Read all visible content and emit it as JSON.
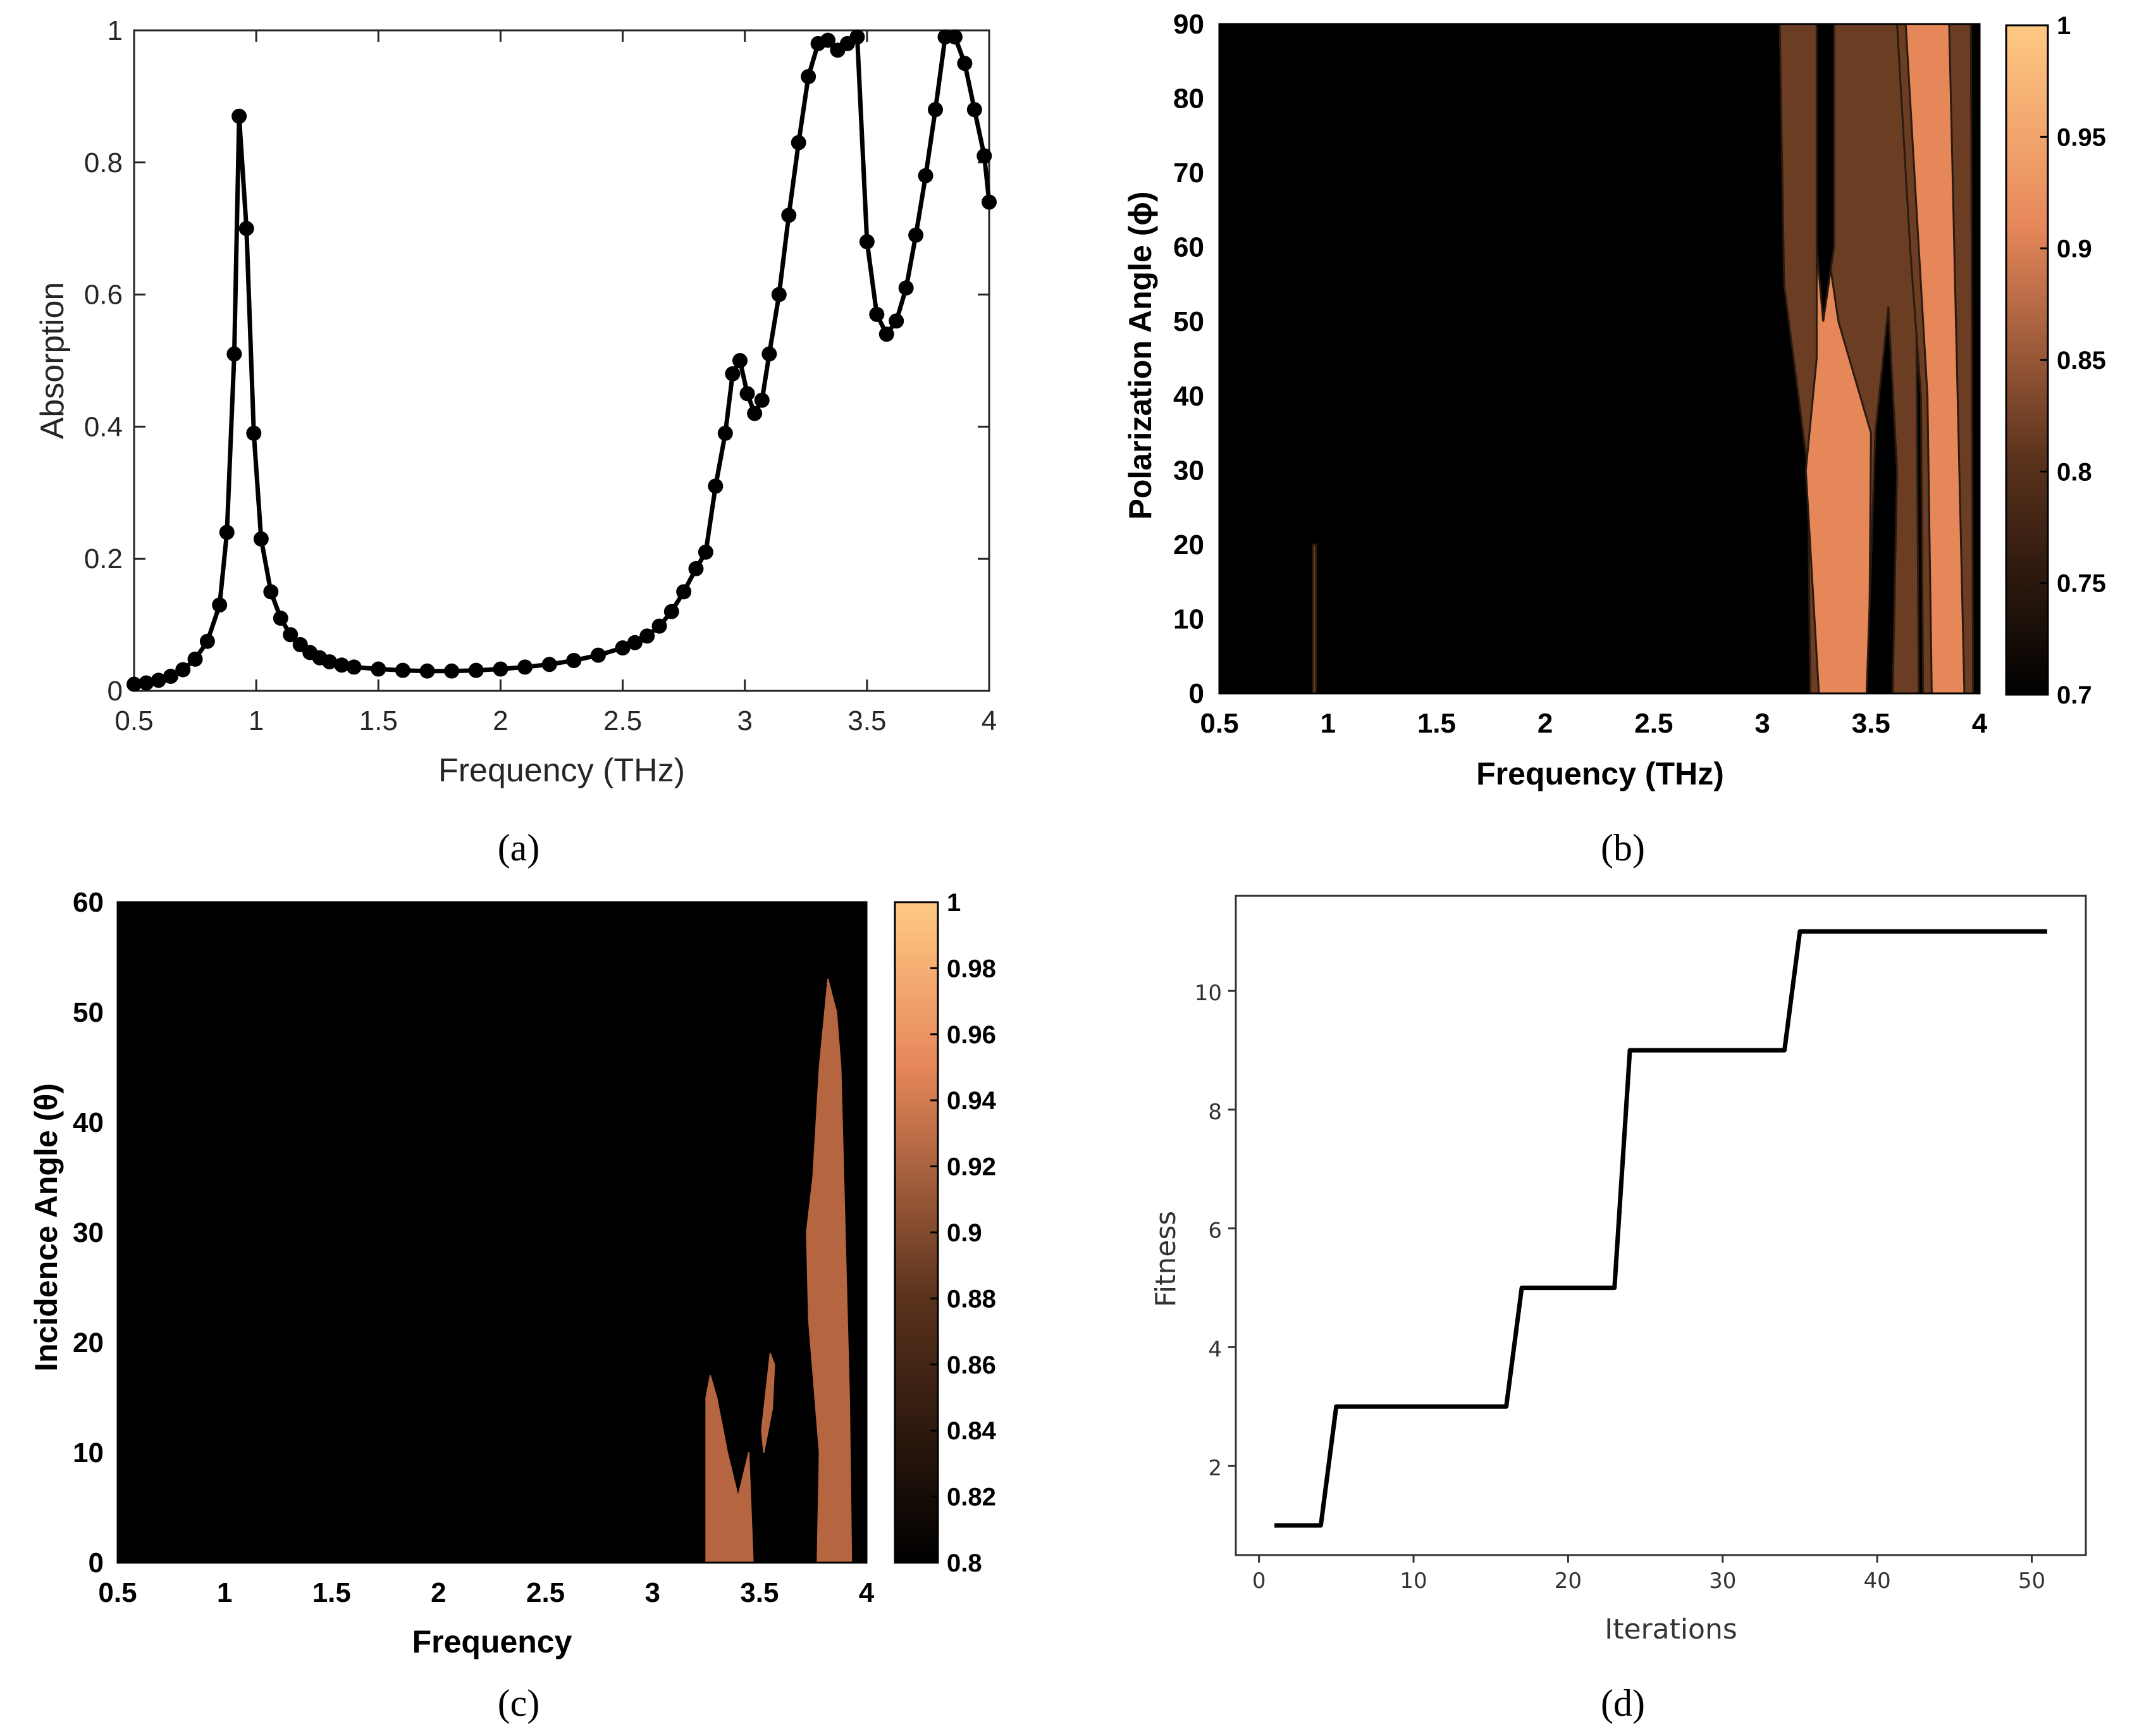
{
  "chart_data": [
    {
      "panel": "a",
      "type": "line",
      "caption": "(a)",
      "xlabel": "Frequency (THz)",
      "ylabel": "Absorption",
      "xlim": [
        0.5,
        4
      ],
      "ylim": [
        0,
        1
      ],
      "xticks": [
        "0.5",
        "1",
        "1.5",
        "2",
        "2.5",
        "3",
        "3.5",
        "4"
      ],
      "yticks": [
        "0",
        "0.2",
        "0.4",
        "0.6",
        "0.8",
        "1"
      ],
      "line_color": "#000000",
      "x": [
        0.5,
        0.55,
        0.6,
        0.65,
        0.7,
        0.75,
        0.8,
        0.85,
        0.88,
        0.91,
        0.93,
        0.96,
        0.99,
        1.02,
        1.06,
        1.1,
        1.14,
        1.18,
        1.22,
        1.26,
        1.3,
        1.35,
        1.4,
        1.5,
        1.6,
        1.7,
        1.8,
        1.9,
        2.0,
        2.1,
        2.2,
        2.3,
        2.4,
        2.5,
        2.55,
        2.6,
        2.65,
        2.7,
        2.75,
        2.8,
        2.84,
        2.88,
        2.92,
        2.95,
        2.98,
        3.01,
        3.04,
        3.07,
        3.1,
        3.14,
        3.18,
        3.22,
        3.26,
        3.3,
        3.34,
        3.38,
        3.42,
        3.46,
        3.5,
        3.54,
        3.58,
        3.62,
        3.66,
        3.7,
        3.74,
        3.78,
        3.82,
        3.86,
        3.9,
        3.94,
        3.98,
        4.0
      ],
      "values": [
        0.01,
        0.012,
        0.016,
        0.022,
        0.032,
        0.048,
        0.075,
        0.13,
        0.24,
        0.51,
        0.87,
        0.7,
        0.39,
        0.23,
        0.15,
        0.11,
        0.085,
        0.07,
        0.058,
        0.05,
        0.044,
        0.039,
        0.036,
        0.033,
        0.031,
        0.03,
        0.03,
        0.031,
        0.033,
        0.036,
        0.04,
        0.046,
        0.054,
        0.065,
        0.073,
        0.083,
        0.098,
        0.12,
        0.15,
        0.185,
        0.21,
        0.31,
        0.39,
        0.48,
        0.5,
        0.45,
        0.42,
        0.44,
        0.51,
        0.6,
        0.72,
        0.83,
        0.93,
        0.98,
        0.985,
        0.97,
        0.98,
        0.99,
        0.68,
        0.57,
        0.54,
        0.56,
        0.61,
        0.69,
        0.78,
        0.88,
        0.99,
        0.99,
        0.95,
        0.88,
        0.81,
        0.74
      ]
    },
    {
      "panel": "b",
      "type": "heatmap",
      "caption": "(b)",
      "xlabel": "Frequency (THz)",
      "ylabel": "Polarization Angle (ϕ)",
      "xlim": [
        0.5,
        4
      ],
      "ylim": [
        0,
        90
      ],
      "xticks": [
        "0.5",
        "1",
        "1.5",
        "2",
        "2.5",
        "3",
        "3.5",
        "4"
      ],
      "yticks": [
        "0",
        "10",
        "20",
        "30",
        "40",
        "50",
        "60",
        "70",
        "80",
        "90"
      ],
      "colorbar_range": [
        0.7,
        1
      ],
      "colorbar_ticks": [
        "0.7",
        "0.75",
        "0.8",
        "0.85",
        "0.9",
        "0.95",
        "1"
      ],
      "colors": {
        "low": "#000000",
        "mid": "#6b3d23",
        "high": "#e6875a"
      },
      "regions": [
        {
          "level": 0.75,
          "color": "#6b3d23",
          "points": [
            [
              0.93,
              0
            ],
            [
              0.945,
              0
            ],
            [
              0.945,
              20
            ],
            [
              0.93,
              20
            ]
          ]
        },
        {
          "level": 0.75,
          "color": "#6b3d23",
          "points": [
            [
              3.08,
              90
            ],
            [
              3.7,
              90
            ],
            [
              3.72,
              0
            ],
            [
              3.22,
              0
            ],
            [
              3.21,
              30
            ],
            [
              3.1,
              55
            ]
          ]
        },
        {
          "level": 0.9,
          "color": "#e6875a",
          "points": [
            [
              3.12,
              90
            ],
            [
              3.25,
              90
            ],
            [
              3.25,
              45
            ],
            [
              3.2,
              30
            ],
            [
              3.26,
              0
            ],
            [
              3.49,
              0
            ],
            [
              3.5,
              35
            ],
            [
              3.35,
              50
            ],
            [
              3.3,
              60
            ],
            [
              3.25,
              90
            ]
          ]
        },
        {
          "level": 0.75,
          "color": "#000000",
          "points": [
            [
              3.25,
              90
            ],
            [
              3.33,
              90
            ],
            [
              3.33,
              60
            ],
            [
              3.28,
              50
            ],
            [
              3.25,
              60
            ]
          ]
        },
        {
          "level": 0.75,
          "color": "#000000",
          "points": [
            [
              3.48,
              0
            ],
            [
              3.6,
              0
            ],
            [
              3.62,
              30
            ],
            [
              3.58,
              52
            ],
            [
              3.52,
              35
            ]
          ]
        },
        {
          "level": 0.75,
          "color": "#6b3d23",
          "points": [
            [
              3.62,
              90
            ],
            [
              3.96,
              90
            ],
            [
              3.97,
              0
            ],
            [
              3.74,
              0
            ],
            [
              3.73,
              40
            ],
            [
              3.68,
              60
            ]
          ]
        },
        {
          "level": 0.9,
          "color": "#e6875a",
          "points": [
            [
              3.66,
              90
            ],
            [
              3.86,
              90
            ],
            [
              3.93,
              0
            ],
            [
              3.78,
              0
            ],
            [
              3.76,
              40
            ],
            [
              3.72,
              60
            ]
          ]
        }
      ]
    },
    {
      "panel": "c",
      "type": "heatmap",
      "caption": "(c)",
      "xlabel": "Frequency",
      "ylabel": "Incidence Angle (θ)",
      "xlim": [
        0.5,
        4
      ],
      "ylim": [
        0,
        60
      ],
      "xticks": [
        "0.5",
        "1",
        "1.5",
        "2",
        "2.5",
        "3",
        "3.5",
        "4"
      ],
      "yticks": [
        "0",
        "10",
        "20",
        "30",
        "40",
        "50",
        "60"
      ],
      "colorbar_range": [
        0.8,
        1
      ],
      "colorbar_ticks": [
        "0.8",
        "0.82",
        "0.84",
        "0.86",
        "0.88",
        "0.9",
        "0.92",
        "0.94",
        "0.96",
        "0.98",
        "1"
      ],
      "colors": {
        "low": "#000000",
        "region": "#b5653f"
      },
      "regions": [
        {
          "level": 0.9,
          "color": "#b5653f",
          "points": [
            [
              3.25,
              0
            ],
            [
              3.47,
              0
            ],
            [
              3.45,
              10
            ],
            [
              3.4,
              6
            ],
            [
              3.35,
              10
            ],
            [
              3.3,
              15
            ],
            [
              3.27,
              17
            ],
            [
              3.25,
              15
            ]
          ]
        },
        {
          "level": 0.9,
          "color": "#b5653f",
          "points": [
            [
              3.51,
              12
            ],
            [
              3.55,
              19
            ],
            [
              3.57,
              18
            ],
            [
              3.56,
              14
            ],
            [
              3.52,
              10
            ]
          ]
        },
        {
          "level": 0.9,
          "color": "#b5653f",
          "points": [
            [
              3.77,
              0
            ],
            [
              3.93,
              0
            ],
            [
              3.92,
              15
            ],
            [
              3.88,
              45
            ],
            [
              3.86,
              50
            ],
            [
              3.82,
              53
            ],
            [
              3.78,
              45
            ],
            [
              3.75,
              35
            ],
            [
              3.72,
              30
            ],
            [
              3.73,
              22
            ],
            [
              3.78,
              10
            ]
          ]
        }
      ]
    },
    {
      "panel": "d",
      "type": "line",
      "caption": "(d)",
      "xlabel": "Iterations",
      "ylabel": "Fitness",
      "xlim": [
        -1.5,
        53.5
      ],
      "ylim": [
        0.5,
        11.6
      ],
      "xticks": [
        "0",
        "10",
        "20",
        "30",
        "40",
        "50"
      ],
      "yticks": [
        "2",
        "4",
        "6",
        "8",
        "10"
      ],
      "line_color": "#000000",
      "x": [
        1,
        4,
        5,
        16,
        17,
        23,
        24,
        34,
        35,
        51
      ],
      "values": [
        1,
        1,
        3,
        3,
        5,
        5,
        9,
        9,
        11,
        11
      ]
    }
  ]
}
